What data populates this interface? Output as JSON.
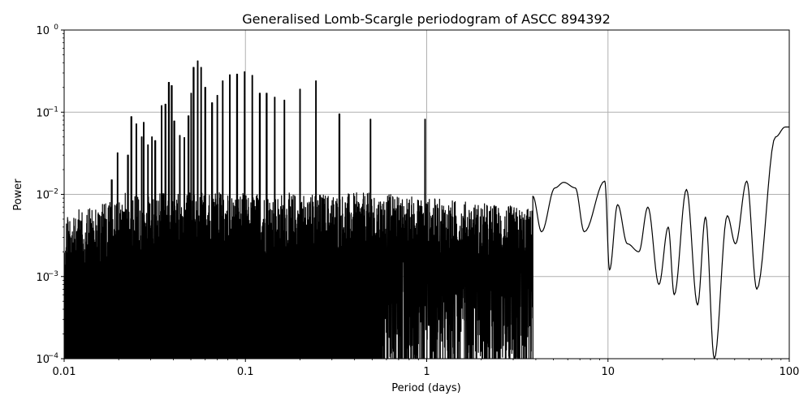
{
  "chart_data": {
    "type": "line",
    "title": "Generalised Lomb-Scargle periodogram of ASCC 894392",
    "xlabel": "Period (days)",
    "ylabel": "Power",
    "xscale": "log",
    "yscale": "log",
    "xlim": [
      0.01,
      100
    ],
    "ylim": [
      0.0001,
      1
    ],
    "grid": true,
    "line_color": "#000000",
    "grid_color": "#b0b0b0",
    "x_ticks": [
      {
        "value": 0.01,
        "label": "0.01"
      },
      {
        "value": 0.1,
        "label": "0.1"
      },
      {
        "value": 1,
        "label": "1"
      },
      {
        "value": 10,
        "label": "10"
      },
      {
        "value": 100,
        "label": "100"
      }
    ],
    "y_ticks": [
      {
        "value": 0.0001,
        "base": "10",
        "exp": "−4"
      },
      {
        "value": 0.001,
        "base": "10",
        "exp": "−3"
      },
      {
        "value": 0.01,
        "base": "10",
        "exp": "−2"
      },
      {
        "value": 0.1,
        "base": "10",
        "exp": "−1"
      },
      {
        "value": 1,
        "base": "10",
        "exp": "0"
      }
    ],
    "peaks": [
      {
        "period": 0.0148,
        "power": 0.0026
      },
      {
        "period": 0.0168,
        "power": 0.005
      },
      {
        "period": 0.0183,
        "power": 0.015
      },
      {
        "period": 0.0197,
        "power": 0.032
      },
      {
        "period": 0.0225,
        "power": 0.03
      },
      {
        "period": 0.0235,
        "power": 0.088
      },
      {
        "period": 0.025,
        "power": 0.072
      },
      {
        "period": 0.0268,
        "power": 0.05
      },
      {
        "period": 0.0275,
        "power": 0.075
      },
      {
        "period": 0.029,
        "power": 0.04
      },
      {
        "period": 0.0305,
        "power": 0.05
      },
      {
        "period": 0.0318,
        "power": 0.045
      },
      {
        "period": 0.0345,
        "power": 0.12
      },
      {
        "period": 0.0362,
        "power": 0.125
      },
      {
        "period": 0.0378,
        "power": 0.23
      },
      {
        "period": 0.0392,
        "power": 0.21
      },
      {
        "period": 0.0405,
        "power": 0.078
      },
      {
        "period": 0.0435,
        "power": 0.052
      },
      {
        "period": 0.046,
        "power": 0.049
      },
      {
        "period": 0.0485,
        "power": 0.09
      },
      {
        "period": 0.0502,
        "power": 0.17
      },
      {
        "period": 0.0518,
        "power": 0.35
      },
      {
        "period": 0.0545,
        "power": 0.42
      },
      {
        "period": 0.057,
        "power": 0.35
      },
      {
        "period": 0.06,
        "power": 0.2
      },
      {
        "period": 0.0655,
        "power": 0.13
      },
      {
        "period": 0.07,
        "power": 0.16
      },
      {
        "period": 0.075,
        "power": 0.24
      },
      {
        "period": 0.082,
        "power": 0.285
      },
      {
        "period": 0.09,
        "power": 0.29
      },
      {
        "period": 0.099,
        "power": 0.31
      },
      {
        "period": 0.109,
        "power": 0.28
      },
      {
        "period": 0.12,
        "power": 0.17
      },
      {
        "period": 0.131,
        "power": 0.17
      },
      {
        "period": 0.145,
        "power": 0.152
      },
      {
        "period": 0.164,
        "power": 0.14
      },
      {
        "period": 0.2,
        "power": 0.19
      },
      {
        "period": 0.245,
        "power": 0.24
      },
      {
        "period": 0.33,
        "power": 0.095
      },
      {
        "period": 0.49,
        "power": 0.082
      },
      {
        "period": 0.98,
        "power": 0.082
      }
    ],
    "low_freq_curve": [
      {
        "period": 3.85,
        "power": 0.0095
      },
      {
        "period": 4.3,
        "power": 0.0035
      },
      {
        "period": 5.1,
        "power": 0.012
      },
      {
        "period": 5.7,
        "power": 0.014
      },
      {
        "period": 6.6,
        "power": 0.012
      },
      {
        "period": 7.4,
        "power": 0.0035
      },
      {
        "period": 9.6,
        "power": 0.0145
      },
      {
        "period": 10.2,
        "power": 0.0012
      },
      {
        "period": 11.3,
        "power": 0.0075
      },
      {
        "period": 12.8,
        "power": 0.0025
      },
      {
        "period": 14.8,
        "power": 0.002
      },
      {
        "period": 16.6,
        "power": 0.007
      },
      {
        "period": 19.1,
        "power": 0.0008
      },
      {
        "period": 21.5,
        "power": 0.004
      },
      {
        "period": 23.2,
        "power": 0.0006
      },
      {
        "period": 27.1,
        "power": 0.0115
      },
      {
        "period": 31.2,
        "power": 0.00045
      },
      {
        "period": 34.5,
        "power": 0.0053
      },
      {
        "period": 38.6,
        "power": 0.0001
      },
      {
        "period": 45.5,
        "power": 0.0055
      },
      {
        "period": 50.5,
        "power": 0.0025
      },
      {
        "period": 58.3,
        "power": 0.0145
      },
      {
        "period": 66.2,
        "power": 0.0007
      },
      {
        "period": 84.0,
        "power": 0.05
      },
      {
        "period": 95.0,
        "power": 0.066
      },
      {
        "period": 100.0,
        "power": 0.066
      }
    ]
  }
}
